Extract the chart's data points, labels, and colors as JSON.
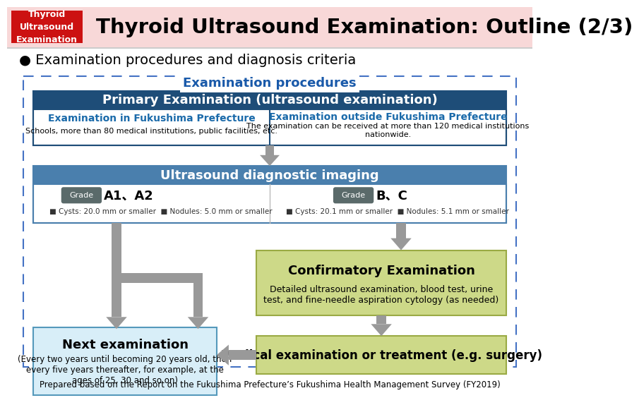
{
  "title": "Thyroid Ultrasound Examination: Outline (2/3)",
  "red_box_lines": [
    "Thyroid",
    "Ultrasound",
    "Examination"
  ],
  "subtitle": "● Examination procedures and diagnosis criteria",
  "section_title": "Examination procedures",
  "primary_exam_title": "Primary Examination (ultrasound examination)",
  "left_col_title": "Examination in Fukushima Prefecture",
  "left_col_body": "Schools, more than 80 medical institutions, public facilities, etc.",
  "right_col_title": "Examination outside Fukushima Prefecture",
  "right_col_body": "The examination can be received at more than 120 medical institutions\nnationwide.",
  "ultrasound_title": "Ultrasound diagnostic imaging",
  "grade_a_label": "Grade",
  "grade_a_value": "A1、A2",
  "grade_a_cysts": "■ Cysts: 20.0 mm or smaller",
  "grade_a_nodules": "■ Nodules: 5.0 mm or smaller",
  "grade_bc_label": "Grade",
  "grade_bc_value": "B、C",
  "grade_bc_cysts": "■ Cysts: 20.1 mm or smaller",
  "grade_bc_nodules": "■ Nodules: 5.1 mm or smaller",
  "confirmatory_title": "Confirmatory Examination",
  "confirmatory_body": "Detailed ultrasound examination, blood test, urine\ntest, and fine-needle aspiration cytology (as needed)",
  "next_exam_title": "Next examination",
  "next_exam_body": "(Every two years until becoming 20 years old, then\nevery five years thereafter, for example, at the\nages of 25, 30 and so on)",
  "medical_exam_title": "Medical examination or treatment (e.g. surgery)",
  "footer": "Prepared based on the Report on the Fukushima Prefecture’s Fukushima Health Management Survey (FY2019)",
  "bg_color": "#ffffff",
  "header_bg": "#f5d0d0",
  "red_box_bg": "#cc1111",
  "dark_blue_hdr": "#1e4d78",
  "mid_blue_hdr": "#4a7fad",
  "blue_border": "#4472c4",
  "grade_bg": "#5a6a6a",
  "olive_green_fill": "#cdd988",
  "olive_green_border": "#9aaa44",
  "light_blue_fill": "#d8eef8",
  "light_blue_border": "#5599bb",
  "arrow_color": "#999999",
  "text_blue": "#1a6aaa",
  "section_title_color": "#1a5aaa"
}
